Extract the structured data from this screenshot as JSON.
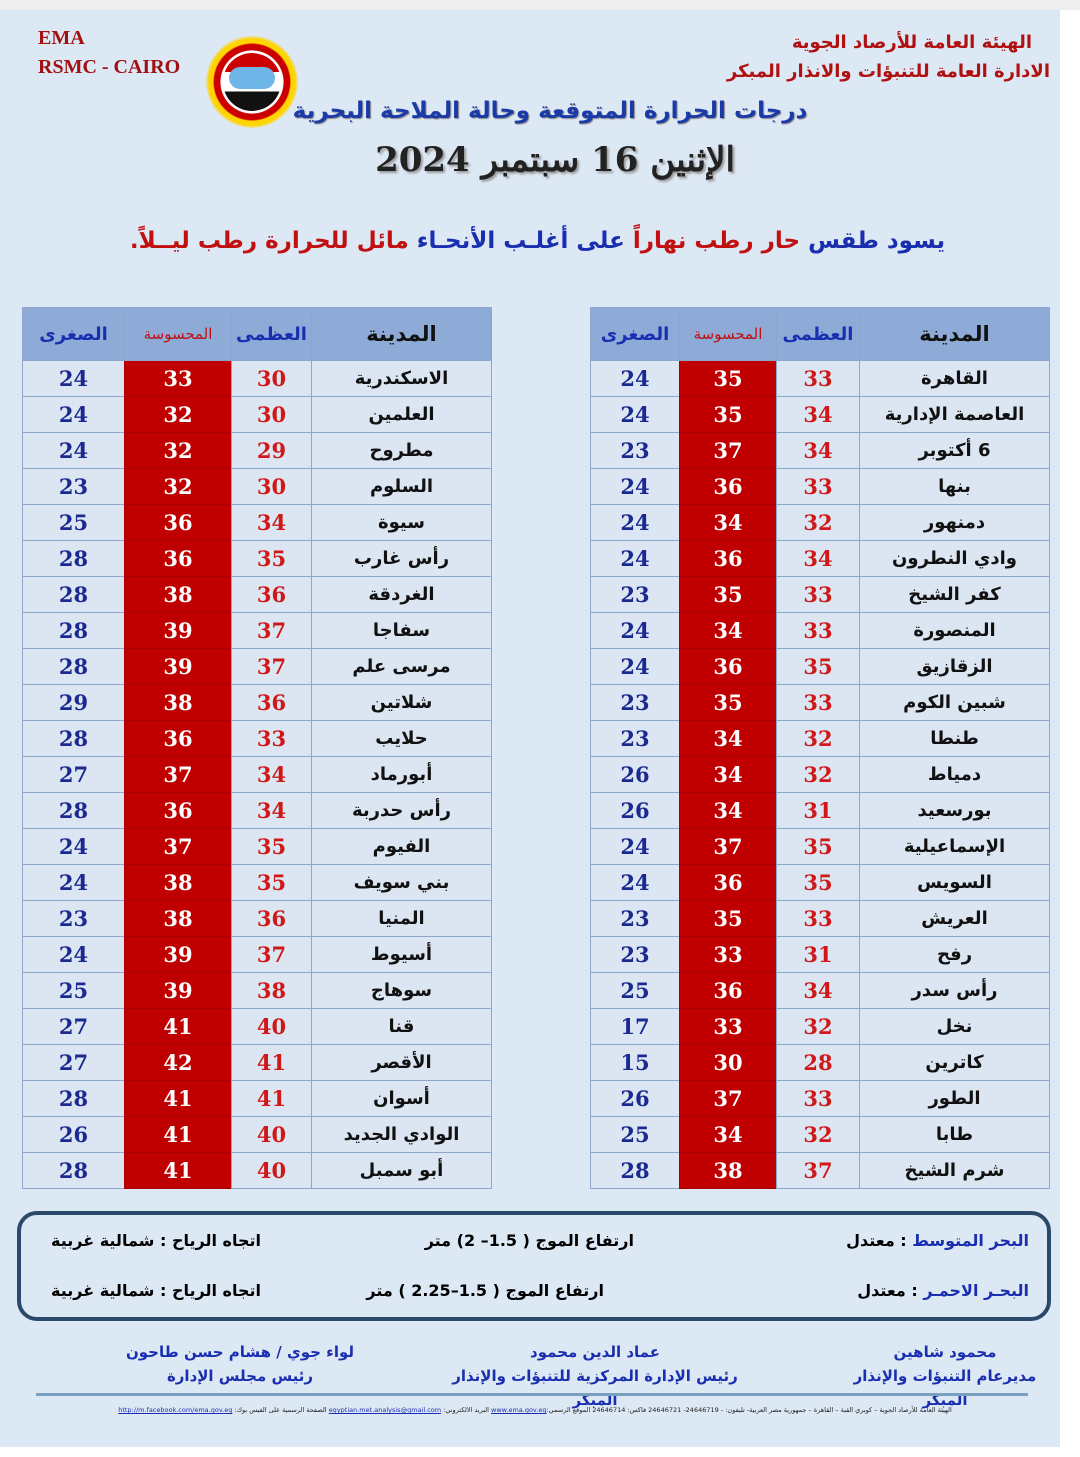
{
  "header": {
    "ema": "EMA",
    "rsmc": "RSMC - CAIRO",
    "org_line1": "الهيئة العامة للأرصاد الجوية",
    "org_line2": "الادارة العامة للتنبؤات والانذار المبكر",
    "title": "درجات الحرارة المتوقعة وحالة الملاحة البحرية",
    "date": "الإثنين 16 سبتمبر 2024"
  },
  "summary": {
    "p1": "يسود طقس ",
    "p2": "حار رطب نهاراً ",
    "p3": "على أغلـب الأنحـاء ",
    "p4": "مائل للحرارة رطب ليــلاً."
  },
  "columns": {
    "city": "المدينة",
    "max": "العظمى",
    "feels": "المحسوسة",
    "min": "الصغرى"
  },
  "colors": {
    "feels_bg": "#c00000",
    "header_bg": "#8eabd8",
    "title_blue": "#1a3aa8"
  },
  "table_right": [
    [
      "القاهرة",
      "33",
      "35",
      "24"
    ],
    [
      "العاصمة الإدارية",
      "34",
      "35",
      "24"
    ],
    [
      "6 أكتوبر",
      "34",
      "37",
      "23"
    ],
    [
      "بنها",
      "33",
      "36",
      "24"
    ],
    [
      "دمنهور",
      "32",
      "34",
      "24"
    ],
    [
      "وادي النطرون",
      "34",
      "36",
      "24"
    ],
    [
      "كفر الشيخ",
      "33",
      "35",
      "23"
    ],
    [
      "المنصورة",
      "33",
      "34",
      "24"
    ],
    [
      "الزقازيق",
      "35",
      "36",
      "24"
    ],
    [
      "شبين الكوم",
      "33",
      "35",
      "23"
    ],
    [
      "طنطا",
      "32",
      "34",
      "23"
    ],
    [
      "دمياط",
      "32",
      "34",
      "26"
    ],
    [
      "بورسعيد",
      "31",
      "34",
      "26"
    ],
    [
      "الإسماعيلية",
      "35",
      "37",
      "24"
    ],
    [
      "السويس",
      "35",
      "36",
      "24"
    ],
    [
      "العريش",
      "33",
      "35",
      "23"
    ],
    [
      "رفح",
      "31",
      "33",
      "23"
    ],
    [
      "رأس سدر",
      "34",
      "36",
      "25"
    ],
    [
      "نخل",
      "32",
      "33",
      "17"
    ],
    [
      "كاترين",
      "28",
      "30",
      "15"
    ],
    [
      "الطور",
      "33",
      "37",
      "26"
    ],
    [
      "طابا",
      "32",
      "34",
      "25"
    ],
    [
      "شرم الشيخ",
      "37",
      "38",
      "28"
    ]
  ],
  "table_left": [
    [
      "الاسكندرية",
      "30",
      "33",
      "24"
    ],
    [
      "العلمين",
      "30",
      "32",
      "24"
    ],
    [
      "مطروح",
      "29",
      "32",
      "24"
    ],
    [
      "السلوم",
      "30",
      "32",
      "23"
    ],
    [
      "سيوة",
      "34",
      "36",
      "25"
    ],
    [
      "رأس غارب",
      "35",
      "36",
      "28"
    ],
    [
      "الغردقة",
      "36",
      "38",
      "28"
    ],
    [
      "سفاجا",
      "37",
      "39",
      "28"
    ],
    [
      "مرسى علم",
      "37",
      "39",
      "28"
    ],
    [
      "شلاتين",
      "36",
      "38",
      "29"
    ],
    [
      "حلايب",
      "33",
      "36",
      "28"
    ],
    [
      "أبورماد",
      "34",
      "37",
      "27"
    ],
    [
      "رأس حدربة",
      "34",
      "36",
      "28"
    ],
    [
      "الفيوم",
      "35",
      "37",
      "24"
    ],
    [
      "بني سويف",
      "35",
      "38",
      "24"
    ],
    [
      "المنيا",
      "36",
      "38",
      "23"
    ],
    [
      "أسيوط",
      "37",
      "39",
      "24"
    ],
    [
      "سوهاج",
      "38",
      "39",
      "25"
    ],
    [
      "قنا",
      "40",
      "41",
      "27"
    ],
    [
      "الأقصر",
      "41",
      "42",
      "27"
    ],
    [
      "أسوان",
      "41",
      "41",
      "28"
    ],
    [
      "الوادي الجديد",
      "40",
      "41",
      "26"
    ],
    [
      "أبو سمبل",
      "40",
      "41",
      "28"
    ]
  ],
  "sea": {
    "med": {
      "name": "البحر المتوسط",
      "state": ": معتدل",
      "waves": "ارتفاع الموج ( 1.5– 2) متر",
      "wind": "اتجاه الرياح : شمالية غربية"
    },
    "red": {
      "name": "البحـر الاحمـر",
      "state": ": معتدل",
      "waves": "ارتفاع الموج ( 1.5–2.25 ) متر",
      "wind": "اتجاه الرياح : شمالية غربية"
    }
  },
  "signatures": [
    {
      "name": "محمود شاهين",
      "role": "مديرعام التنبؤات والإنذار المبكر"
    },
    {
      "name": "عماد الدين محمود",
      "role": "رئيس الإدارة المركزية للتنبؤات والإنذار المبكر"
    },
    {
      "name": "لواء جوي / هشام حسن طاحون",
      "role": "رئيس مجلس الإدارة"
    }
  ],
  "footer": {
    "text": "الهيئة العامة للأرصاد الجوية – كوبري القبة – القاهرة – جمهورية مصر العربية- تليفون: - 24646719- 24646721 فاكس: 24646714 الموقع الرسمي:",
    "website": "www.ema.gov.eg",
    "email_label": " البريد الالكتروني: ",
    "email": "egyptian.met.analysis@gmail.com",
    "fb_label": " الصفحة الرسمية على الفيس بوك: ",
    "facebook": "http://m.facebook.com/ema.gov.eg"
  }
}
